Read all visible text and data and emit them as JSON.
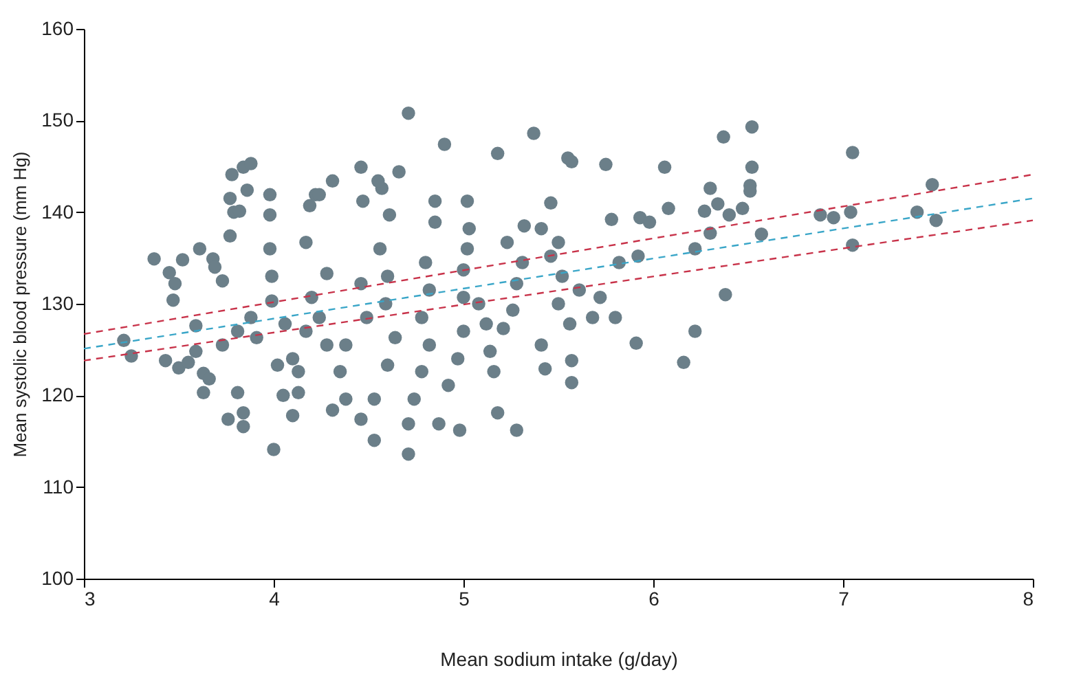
{
  "chart_data": {
    "type": "scatter",
    "xlabel": "Mean sodium intake (g/day)",
    "ylabel": "Mean systolic blood pressure (mm Hg)",
    "xlim": [
      3,
      8
    ],
    "ylim": [
      100,
      160
    ],
    "xticks": [
      3,
      4,
      5,
      6,
      7,
      8
    ],
    "yticks": [
      100,
      110,
      120,
      130,
      140,
      150,
      160
    ],
    "series": [
      {
        "type": "scatter",
        "color": "#6b7f89",
        "marker": "circle",
        "x": [
          3.21,
          3.25,
          3.37,
          3.45,
          3.48,
          3.52,
          3.47,
          3.43,
          3.5,
          3.55,
          3.59,
          3.59,
          3.63,
          3.66,
          3.61,
          3.68,
          3.69,
          3.73,
          3.77,
          3.79,
          3.78,
          3.84,
          3.88,
          3.77,
          3.82,
          3.86,
          3.76,
          3.84,
          3.63,
          3.81,
          3.84,
          4.0,
          3.98,
          3.98,
          3.98,
          3.99,
          3.99,
          3.88,
          3.81,
          3.73,
          3.91,
          4.06,
          4.1,
          4.13,
          4.13,
          4.1,
          4.05,
          4.02,
          4.17,
          4.24,
          4.28,
          4.2,
          4.28,
          4.17,
          4.19,
          4.22,
          4.24,
          4.31,
          4.46,
          4.47,
          4.46,
          4.49,
          4.38,
          4.35,
          4.38,
          4.31,
          4.46,
          4.53,
          4.53,
          4.6,
          4.64,
          4.59,
          4.6,
          4.56,
          4.61,
          4.57,
          4.55,
          4.66,
          4.71,
          4.71,
          4.71,
          4.74,
          4.78,
          4.82,
          4.78,
          4.82,
          4.8,
          4.85,
          4.85,
          4.9,
          4.87,
          4.98,
          4.92,
          4.97,
          5.0,
          5.0,
          5.0,
          5.02,
          5.03,
          5.02,
          5.08,
          5.12,
          5.14,
          5.16,
          5.18,
          5.28,
          5.21,
          5.26,
          5.28,
          5.31,
          5.32,
          5.23,
          5.18,
          5.37,
          5.41,
          5.41,
          5.43,
          5.46,
          5.46,
          5.5,
          5.52,
          5.55,
          5.57,
          5.5,
          5.56,
          5.57,
          5.57,
          5.61,
          5.68,
          5.72,
          5.75,
          5.78,
          5.8,
          5.82,
          5.92,
          5.91,
          5.93,
          5.98,
          6.06,
          6.08,
          6.16,
          6.22,
          6.22,
          6.27,
          6.3,
          6.3,
          6.37,
          6.38,
          6.34,
          6.4,
          6.52,
          6.52,
          6.51,
          6.51,
          6.47,
          6.57,
          6.88,
          6.95,
          7.05,
          7.04,
          7.05,
          7.39,
          7.47,
          7.49
        ],
        "values": [
          126.0,
          124.3,
          134.9,
          133.4,
          132.2,
          134.8,
          130.4,
          123.8,
          123.0,
          123.6,
          127.6,
          124.8,
          122.4,
          121.8,
          136.0,
          134.9,
          134.0,
          132.5,
          141.5,
          140.0,
          144.1,
          144.9,
          145.3,
          137.4,
          140.1,
          142.4,
          117.4,
          116.6,
          120.3,
          120.3,
          118.1,
          114.1,
          141.9,
          139.7,
          136.0,
          133.0,
          130.3,
          128.5,
          127.0,
          125.5,
          126.3,
          127.8,
          124.0,
          122.6,
          120.3,
          117.8,
          120.0,
          123.3,
          127.0,
          128.5,
          125.5,
          130.7,
          133.3,
          136.7,
          140.7,
          141.9,
          141.9,
          143.4,
          144.9,
          141.2,
          132.2,
          128.5,
          125.5,
          122.6,
          119.6,
          118.4,
          117.4,
          115.1,
          119.6,
          123.3,
          126.3,
          130.0,
          133.0,
          136.0,
          139.7,
          142.6,
          143.4,
          144.4,
          150.8,
          113.6,
          116.9,
          119.6,
          122.6,
          125.5,
          128.5,
          131.5,
          134.5,
          138.9,
          141.2,
          147.4,
          116.9,
          116.2,
          121.1,
          124.0,
          127.0,
          130.7,
          133.7,
          136.0,
          138.2,
          141.2,
          130.0,
          127.8,
          124.8,
          122.6,
          118.1,
          116.2,
          127.3,
          129.3,
          132.2,
          134.5,
          138.5,
          136.7,
          146.4,
          148.6,
          138.2,
          125.5,
          122.9,
          141.0,
          135.2,
          136.7,
          133.0,
          145.9,
          145.5,
          130.0,
          127.8,
          123.8,
          121.4,
          131.5,
          128.5,
          130.7,
          145.2,
          139.2,
          128.5,
          134.5,
          135.2,
          125.7,
          139.4,
          138.9,
          144.9,
          140.4,
          123.6,
          127.0,
          136.0,
          140.1,
          142.6,
          137.7,
          148.2,
          131.0,
          140.9,
          139.7,
          149.3,
          144.9,
          142.9,
          142.3,
          140.4,
          137.6,
          139.7,
          139.4,
          146.5,
          140.0,
          136.4,
          140.0,
          143.0,
          139.1
        ]
      },
      {
        "type": "line",
        "color": "#c8334a",
        "line_style": "dashed",
        "marker": "none",
        "x": [
          3,
          8
        ],
        "values": [
          126.7,
          144.1
        ]
      },
      {
        "type": "line",
        "color": "#3aa6c8",
        "line_style": "dashed",
        "marker": "none",
        "x": [
          3,
          8
        ],
        "values": [
          125.1,
          141.5
        ]
      },
      {
        "type": "line",
        "color": "#c8334a",
        "line_style": "dashed",
        "marker": "none",
        "x": [
          3,
          8
        ],
        "values": [
          123.8,
          139.1
        ]
      }
    ]
  }
}
